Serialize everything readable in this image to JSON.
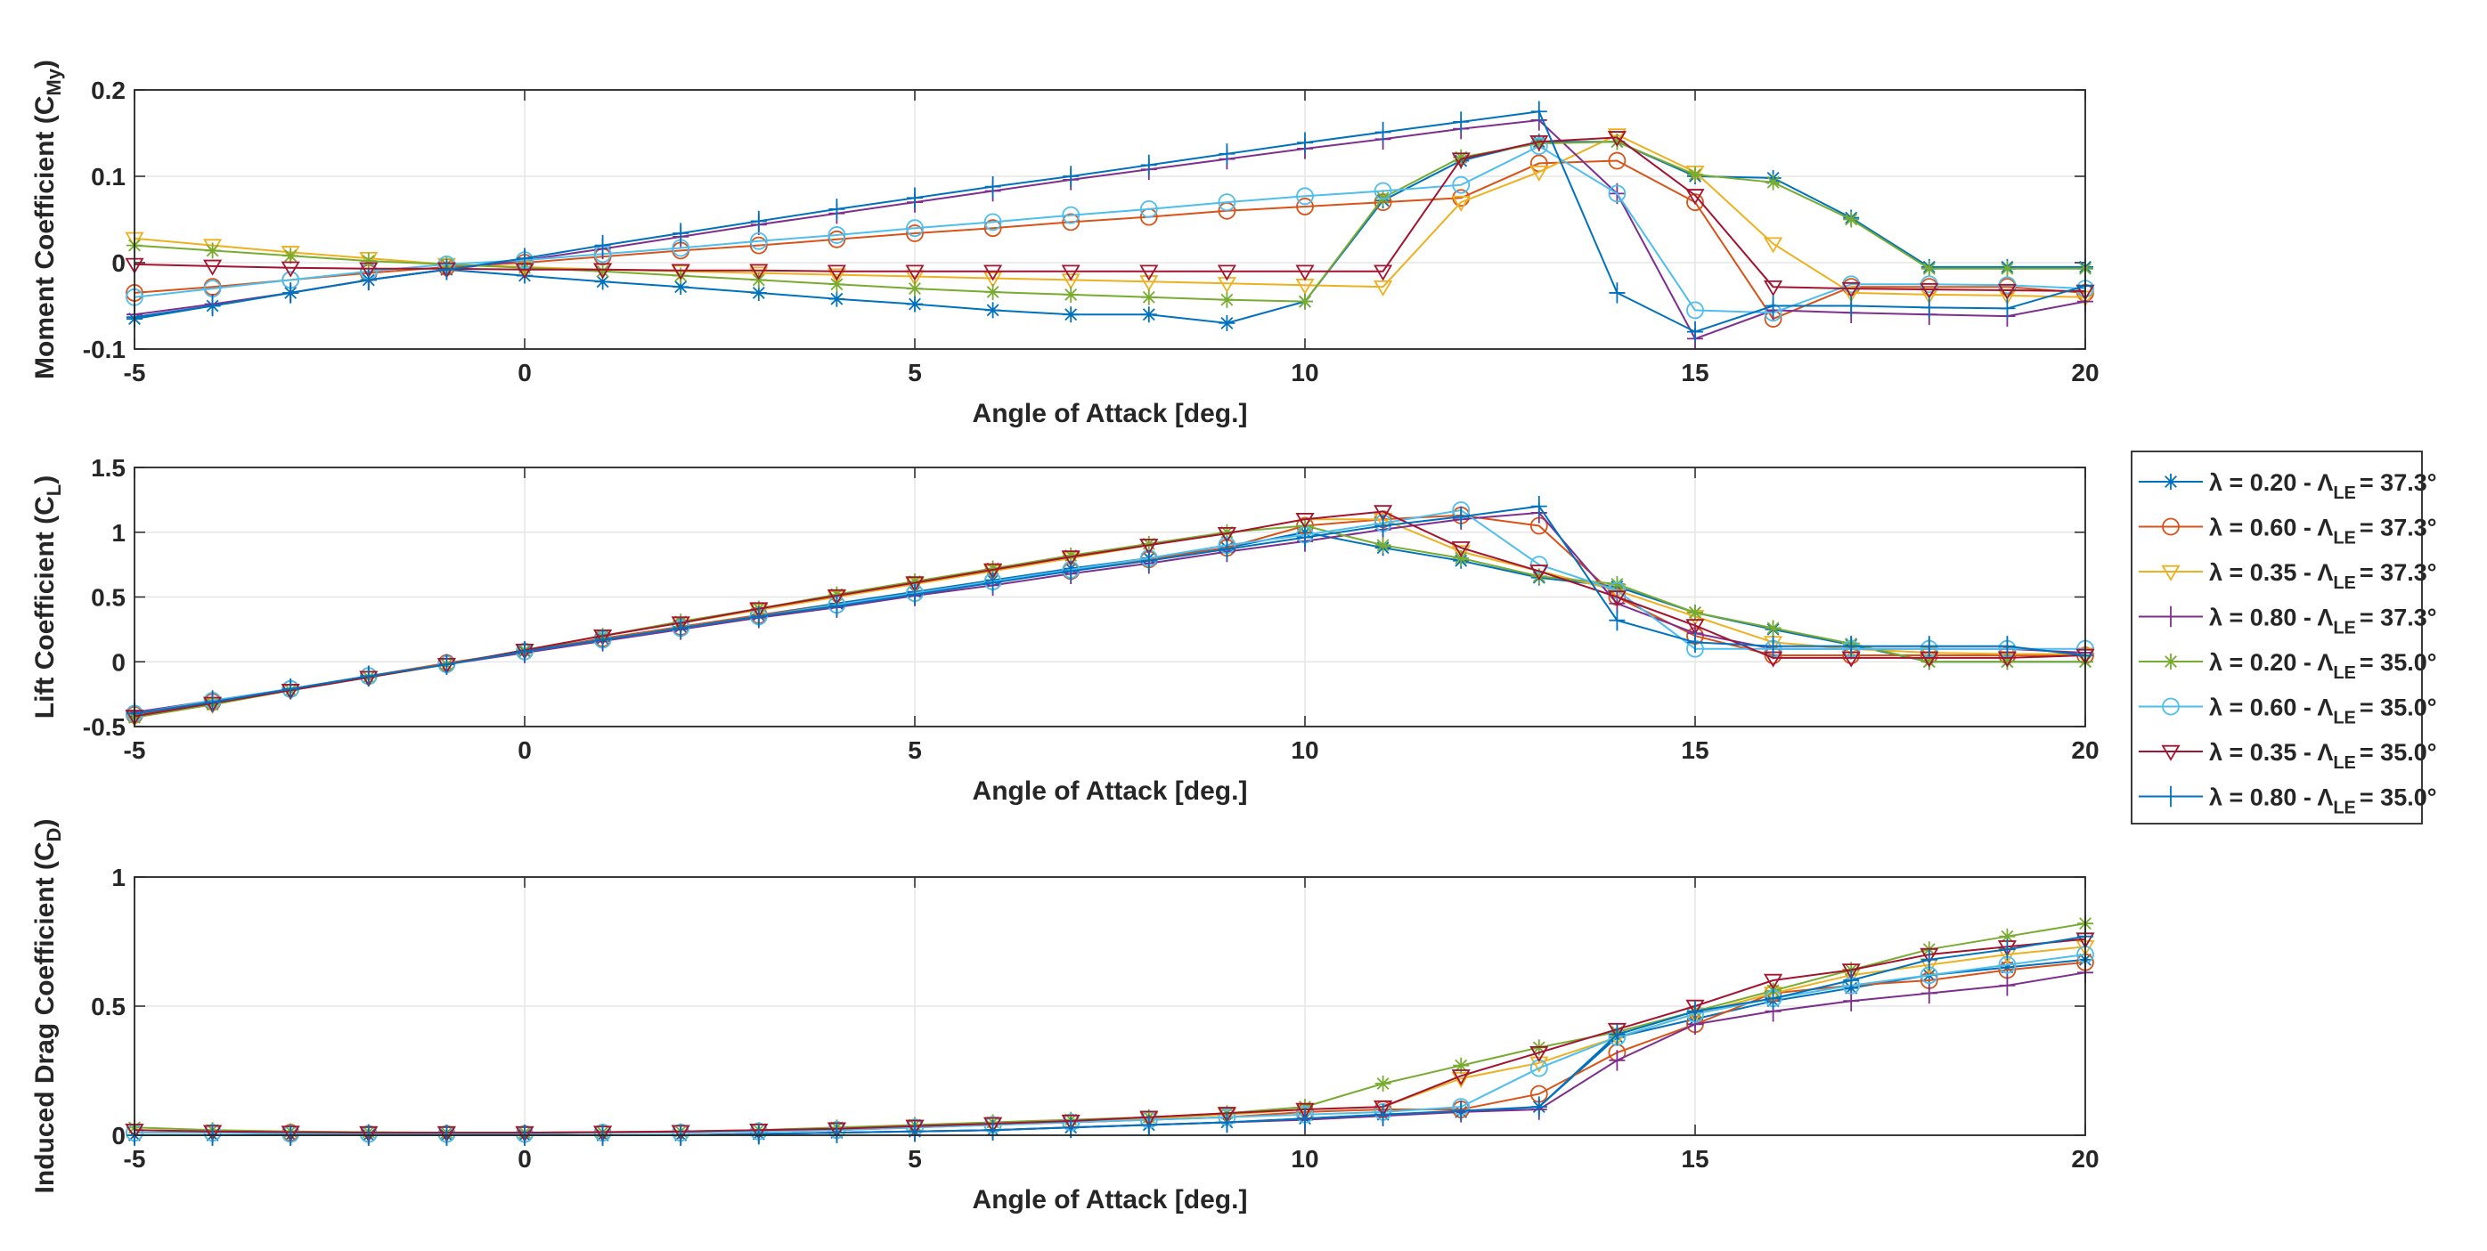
{
  "chart_data": [
    {
      "type": "line",
      "xlabel": "Angle of Attack [deg.]",
      "ylabel": {
        "main": "Moment Coefficient (C",
        "sub": "My",
        "end": ")"
      },
      "xlim": [
        -5,
        20
      ],
      "ylim": [
        -0.1,
        0.2
      ],
      "xticks": [
        "-5",
        "0",
        "5",
        "10",
        "15",
        "20"
      ],
      "yticks": [
        "-0.1",
        "0",
        "0.1",
        "0.2"
      ],
      "grid": true,
      "x": [
        -5,
        -4,
        -3,
        -2,
        -1,
        0,
        1,
        2,
        3,
        4,
        5,
        6,
        7,
        8,
        9,
        10,
        11,
        12,
        13,
        14,
        15,
        16,
        17,
        18,
        19,
        20
      ],
      "series": [
        {
          "values": [
            -0.065,
            -0.05,
            -0.035,
            -0.02,
            -0.008,
            -0.015,
            -0.022,
            -0.028,
            -0.035,
            -0.042,
            -0.048,
            -0.055,
            -0.06,
            -0.06,
            -0.07,
            -0.045,
            0.072,
            0.118,
            0.14,
            0.14,
            0.1,
            0.098,
            0.052,
            -0.005,
            -0.005,
            -0.005
          ]
        },
        {
          "values": [
            -0.035,
            -0.028,
            -0.02,
            -0.012,
            -0.005,
            0,
            0.007,
            0.014,
            0.02,
            0.027,
            0.034,
            0.04,
            0.047,
            0.053,
            0.06,
            0.065,
            0.07,
            0.075,
            0.115,
            0.118,
            0.07,
            -0.065,
            -0.028,
            -0.028,
            -0.028,
            -0.035
          ]
        },
        {
          "values": [
            0.028,
            0.02,
            0.012,
            0.005,
            -0.002,
            -0.005,
            -0.008,
            -0.01,
            -0.012,
            -0.014,
            -0.016,
            -0.018,
            -0.02,
            -0.022,
            -0.024,
            -0.026,
            -0.028,
            0.07,
            0.105,
            0.148,
            0.105,
            0.022,
            -0.035,
            -0.037,
            -0.038,
            -0.04
          ]
        },
        {
          "values": [
            -0.06,
            -0.048,
            -0.035,
            -0.02,
            -0.008,
            0.003,
            0.016,
            0.03,
            0.044,
            0.057,
            0.07,
            0.083,
            0.096,
            0.108,
            0.12,
            0.132,
            0.143,
            0.155,
            0.165,
            0.08,
            -0.088,
            -0.055,
            -0.058,
            -0.06,
            -0.062,
            -0.045
          ]
        },
        {
          "values": [
            0.02,
            0.014,
            0.008,
            0.002,
            -0.002,
            -0.006,
            -0.01,
            -0.015,
            -0.02,
            -0.025,
            -0.03,
            -0.034,
            -0.037,
            -0.04,
            -0.043,
            -0.045,
            0.075,
            0.122,
            0.138,
            0.14,
            0.102,
            0.093,
            0.05,
            -0.007,
            -0.007,
            -0.007
          ]
        },
        {
          "values": [
            -0.04,
            -0.03,
            -0.02,
            -0.01,
            -0.002,
            0.003,
            0.01,
            0.017,
            0.025,
            0.032,
            0.04,
            0.047,
            0.055,
            0.062,
            0.07,
            0.077,
            0.083,
            0.09,
            0.135,
            0.08,
            -0.055,
            -0.058,
            -0.025,
            -0.025,
            -0.026,
            -0.03
          ]
        },
        {
          "values": [
            -0.002,
            -0.004,
            -0.006,
            -0.007,
            -0.007,
            -0.008,
            -0.008,
            -0.009,
            -0.009,
            -0.01,
            -0.01,
            -0.01,
            -0.01,
            -0.01,
            -0.01,
            -0.01,
            -0.01,
            0.12,
            0.14,
            0.145,
            0.078,
            -0.028,
            -0.03,
            -0.031,
            -0.032,
            -0.033
          ]
        },
        {
          "values": [
            -0.063,
            -0.05,
            -0.035,
            -0.02,
            -0.008,
            0.005,
            0.02,
            0.034,
            0.048,
            0.062,
            0.075,
            0.088,
            0.1,
            0.113,
            0.126,
            0.139,
            0.151,
            0.163,
            0.175,
            -0.035,
            -0.08,
            -0.05,
            -0.05,
            -0.052,
            -0.053,
            -0.027
          ]
        }
      ]
    },
    {
      "type": "line",
      "xlabel": "Angle of Attack [deg.]",
      "ylabel": {
        "main": "Lift Coefficient (C",
        "sub": "L",
        "end": ")"
      },
      "xlim": [
        -5,
        20
      ],
      "ylim": [
        -0.5,
        1.5
      ],
      "xticks": [
        "-5",
        "0",
        "5",
        "10",
        "15",
        "20"
      ],
      "yticks": [
        "-0.5",
        "0",
        "0.5",
        "1",
        "1.5"
      ],
      "grid": true,
      "x": [
        -5,
        -4,
        -3,
        -2,
        -1,
        0,
        1,
        2,
        3,
        4,
        5,
        6,
        7,
        8,
        9,
        10,
        11,
        12,
        13,
        14,
        15,
        16,
        17,
        18,
        19,
        20
      ],
      "series": [
        {
          "values": [
            -0.42,
            -0.32,
            -0.22,
            -0.12,
            -0.02,
            0.08,
            0.18,
            0.27,
            0.36,
            0.45,
            0.54,
            0.63,
            0.72,
            0.8,
            0.88,
            1.0,
            0.88,
            0.78,
            0.65,
            0.58,
            0.38,
            0.25,
            0.13,
            0,
            0,
            0
          ]
        },
        {
          "values": [
            -0.41,
            -0.31,
            -0.21,
            -0.11,
            -0.01,
            0.08,
            0.18,
            0.27,
            0.36,
            0.44,
            0.53,
            0.62,
            0.7,
            0.79,
            0.88,
            1.05,
            1.1,
            1.13,
            1.05,
            0.5,
            0.2,
            0.05,
            0.05,
            0.05,
            0.05,
            0.05
          ]
        },
        {
          "values": [
            -0.43,
            -0.33,
            -0.22,
            -0.12,
            -0.02,
            0.09,
            0.2,
            0.3,
            0.4,
            0.5,
            0.6,
            0.7,
            0.8,
            0.9,
            0.99,
            1.1,
            1.1,
            0.85,
            0.7,
            0.55,
            0.35,
            0.15,
            0.1,
            0.07,
            0.06,
            0.06
          ]
        },
        {
          "values": [
            -0.39,
            -0.3,
            -0.21,
            -0.11,
            -0.02,
            0.07,
            0.16,
            0.25,
            0.34,
            0.42,
            0.51,
            0.59,
            0.68,
            0.76,
            0.85,
            0.93,
            1.02,
            1.1,
            1.15,
            0.45,
            0.22,
            0.1,
            0.1,
            0.1,
            0.1,
            0.07
          ]
        },
        {
          "values": [
            -0.43,
            -0.33,
            -0.22,
            -0.12,
            -0.02,
            0.09,
            0.2,
            0.31,
            0.41,
            0.52,
            0.62,
            0.72,
            0.82,
            0.91,
            1.0,
            1.05,
            0.9,
            0.8,
            0.66,
            0.6,
            0.38,
            0.26,
            0.14,
            0,
            0,
            0
          ]
        },
        {
          "values": [
            -0.4,
            -0.3,
            -0.21,
            -0.11,
            -0.02,
            0.08,
            0.17,
            0.26,
            0.35,
            0.44,
            0.53,
            0.62,
            0.71,
            0.8,
            0.9,
            0.98,
            1.07,
            1.17,
            0.75,
            0.55,
            0.1,
            0.1,
            0.1,
            0.1,
            0.1,
            0.1
          ]
        },
        {
          "values": [
            -0.42,
            -0.32,
            -0.22,
            -0.12,
            -0.02,
            0.09,
            0.2,
            0.3,
            0.41,
            0.51,
            0.61,
            0.71,
            0.81,
            0.9,
            0.99,
            1.1,
            1.16,
            0.88,
            0.7,
            0.5,
            0.28,
            0.03,
            0.03,
            0.03,
            0.03,
            0.05
          ]
        },
        {
          "values": [
            -0.4,
            -0.31,
            -0.21,
            -0.11,
            -0.02,
            0.08,
            0.17,
            0.26,
            0.35,
            0.43,
            0.52,
            0.61,
            0.7,
            0.78,
            0.87,
            0.96,
            1.05,
            1.12,
            1.2,
            0.32,
            0.15,
            0.12,
            0.12,
            0.12,
            0.12,
            0.05
          ]
        }
      ]
    },
    {
      "type": "line",
      "xlabel": "Angle of Attack [deg.]",
      "ylabel": {
        "main": "Induced Drag Coefficient (C",
        "sub": "D",
        "end": ")"
      },
      "xlim": [
        -5,
        20
      ],
      "ylim": [
        0,
        1
      ],
      "xticks": [
        "-5",
        "0",
        "5",
        "10",
        "15",
        "20"
      ],
      "yticks": [
        "0",
        "0.5",
        "1"
      ],
      "grid": true,
      "x": [
        -5,
        -4,
        -3,
        -2,
        -1,
        0,
        1,
        2,
        3,
        4,
        5,
        6,
        7,
        8,
        9,
        10,
        11,
        12,
        13,
        14,
        15,
        16,
        17,
        18,
        19,
        20
      ],
      "series": [
        {
          "values": [
            0,
            0,
            0,
            0,
            0,
            0,
            0,
            0,
            0.005,
            0.01,
            0.015,
            0.02,
            0.03,
            0.04,
            0.05,
            0.065,
            0.08,
            0.09,
            0.11,
            0.38,
            0.45,
            0.52,
            0.57,
            0.62,
            0.65,
            0.68
          ]
        },
        {
          "values": [
            0.01,
            0.01,
            0.01,
            0.005,
            0.005,
            0.005,
            0.01,
            0.01,
            0.015,
            0.02,
            0.03,
            0.04,
            0.05,
            0.06,
            0.07,
            0.09,
            0.1,
            0.1,
            0.16,
            0.32,
            0.43,
            0.55,
            0.58,
            0.6,
            0.64,
            0.67
          ]
        },
        {
          "values": [
            0.02,
            0.015,
            0.012,
            0.01,
            0.01,
            0.01,
            0.012,
            0.015,
            0.02,
            0.025,
            0.035,
            0.045,
            0.055,
            0.065,
            0.08,
            0.1,
            0.11,
            0.22,
            0.28,
            0.38,
            0.47,
            0.55,
            0.62,
            0.66,
            0.7,
            0.73
          ]
        },
        {
          "values": [
            0,
            0,
            0,
            0,
            0,
            0,
            0,
            0,
            0.005,
            0.01,
            0.015,
            0.02,
            0.03,
            0.04,
            0.05,
            0.06,
            0.075,
            0.09,
            0.1,
            0.29,
            0.43,
            0.48,
            0.52,
            0.55,
            0.58,
            0.63
          ]
        },
        {
          "values": [
            0.03,
            0.02,
            0.015,
            0.012,
            0.01,
            0.01,
            0.012,
            0.015,
            0.02,
            0.03,
            0.04,
            0.05,
            0.06,
            0.07,
            0.085,
            0.11,
            0.2,
            0.27,
            0.34,
            0.4,
            0.48,
            0.56,
            0.64,
            0.72,
            0.77,
            0.82
          ]
        },
        {
          "values": [
            0.01,
            0.01,
            0.005,
            0.005,
            0.005,
            0.005,
            0.01,
            0.01,
            0.015,
            0.02,
            0.03,
            0.04,
            0.05,
            0.06,
            0.07,
            0.08,
            0.09,
            0.11,
            0.26,
            0.38,
            0.47,
            0.53,
            0.58,
            0.62,
            0.66,
            0.7
          ]
        },
        {
          "values": [
            0.02,
            0.015,
            0.012,
            0.01,
            0.01,
            0.01,
            0.012,
            0.015,
            0.02,
            0.025,
            0.035,
            0.045,
            0.055,
            0.07,
            0.085,
            0.1,
            0.11,
            0.23,
            0.32,
            0.41,
            0.5,
            0.6,
            0.64,
            0.7,
            0.73,
            0.76
          ]
        },
        {
          "values": [
            0,
            0,
            0,
            0,
            0,
            0,
            0,
            0,
            0.005,
            0.01,
            0.015,
            0.02,
            0.03,
            0.04,
            0.05,
            0.065,
            0.08,
            0.095,
            0.11,
            0.39,
            0.48,
            0.53,
            0.6,
            0.68,
            0.72,
            0.77
          ]
        }
      ]
    }
  ],
  "legend": {
    "placement": "right",
    "entries": [
      {
        "lambda": "λ = 0.20 - Λ",
        "sub": "LE",
        "sweep": "= 37.3°",
        "color": "#0072BD",
        "marker": "asterisk"
      },
      {
        "lambda": "λ = 0.60 - Λ",
        "sub": "LE",
        "sweep": "= 37.3°",
        "color": "#D95319",
        "marker": "circle"
      },
      {
        "lambda": "λ = 0.35 - Λ",
        "sub": "LE",
        "sweep": "= 37.3°",
        "color": "#EDB120",
        "marker": "triangle-down"
      },
      {
        "lambda": "λ = 0.80 - Λ",
        "sub": "LE",
        "sweep": "= 37.3°",
        "color": "#7E2F8E",
        "marker": "plus"
      },
      {
        "lambda": "λ = 0.20 - Λ",
        "sub": "LE",
        "sweep": "= 35.0°",
        "color": "#77AC30",
        "marker": "asterisk"
      },
      {
        "lambda": "λ = 0.60 - Λ",
        "sub": "LE",
        "sweep": "= 35.0°",
        "color": "#4DBEEE",
        "marker": "circle"
      },
      {
        "lambda": "λ = 0.35 - Λ",
        "sub": "LE",
        "sweep": "= 35.0°",
        "color": "#A2142F",
        "marker": "triangle-down"
      },
      {
        "lambda": "λ = 0.80 - Λ",
        "sub": "LE",
        "sweep": "= 35.0°",
        "color": "#0072BD",
        "marker": "plus"
      }
    ]
  }
}
